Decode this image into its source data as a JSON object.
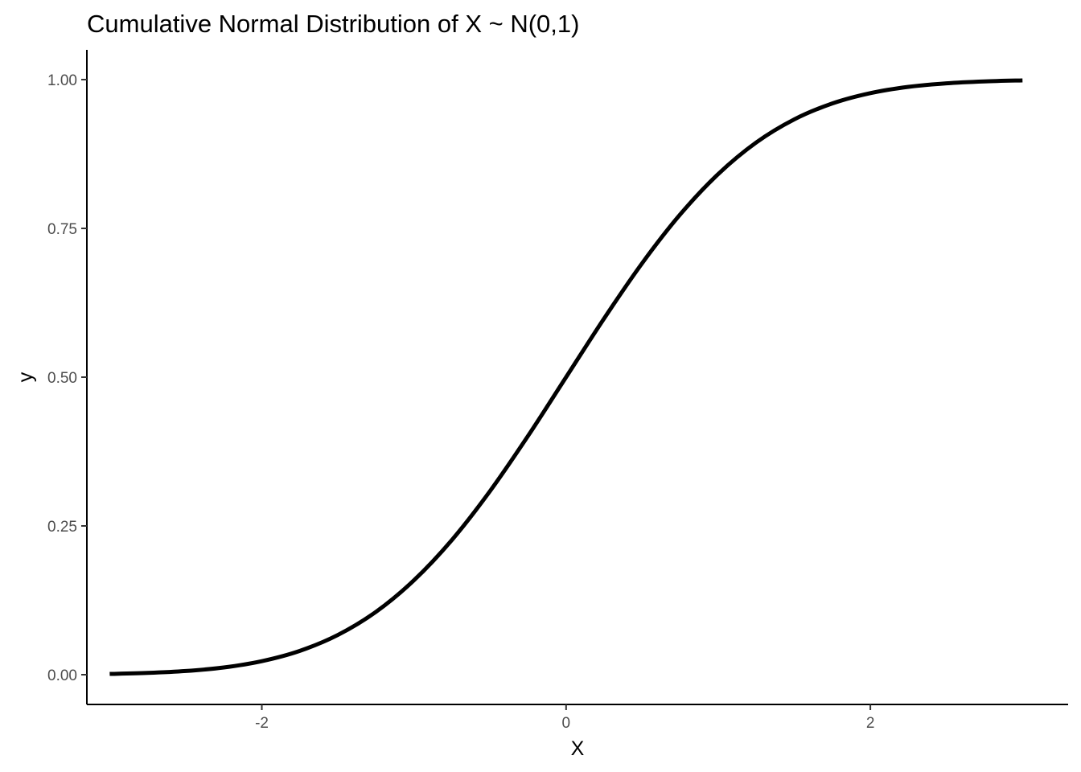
{
  "chart_data": {
    "type": "line",
    "title": "Cumulative Normal Distribution of X ~ N(0,1)",
    "xlabel": "X",
    "ylabel": "y",
    "xlim": [
      -3.15,
      3.3
    ],
    "ylim": [
      -0.05,
      1.05
    ],
    "x_ticks": [
      -2,
      0,
      2
    ],
    "x_tick_labels": [
      "-2",
      "0",
      "2"
    ],
    "y_ticks": [
      0,
      0.25,
      0.5,
      0.75,
      1
    ],
    "y_tick_labels": [
      "0.00",
      "0.25",
      "0.50",
      "0.75",
      "1.00"
    ],
    "grid": false,
    "series": [
      {
        "color": "#000000",
        "x": [
          -3.0,
          -2.75,
          -2.5,
          -2.25,
          -2.0,
          -1.75,
          -1.5,
          -1.25,
          -1.0,
          -0.75,
          -0.5,
          -0.25,
          0.0,
          0.25,
          0.5,
          0.75,
          1.0,
          1.25,
          1.5,
          1.75,
          2.0,
          2.25,
          2.5,
          2.75,
          3.0
        ],
        "y": [
          0.0013,
          0.003,
          0.0062,
          0.0122,
          0.0228,
          0.0401,
          0.0668,
          0.1056,
          0.1587,
          0.2266,
          0.3085,
          0.4013,
          0.5,
          0.5987,
          0.6915,
          0.7734,
          0.8413,
          0.8944,
          0.9332,
          0.9599,
          0.9772,
          0.9878,
          0.9938,
          0.997,
          0.9987
        ]
      }
    ]
  }
}
